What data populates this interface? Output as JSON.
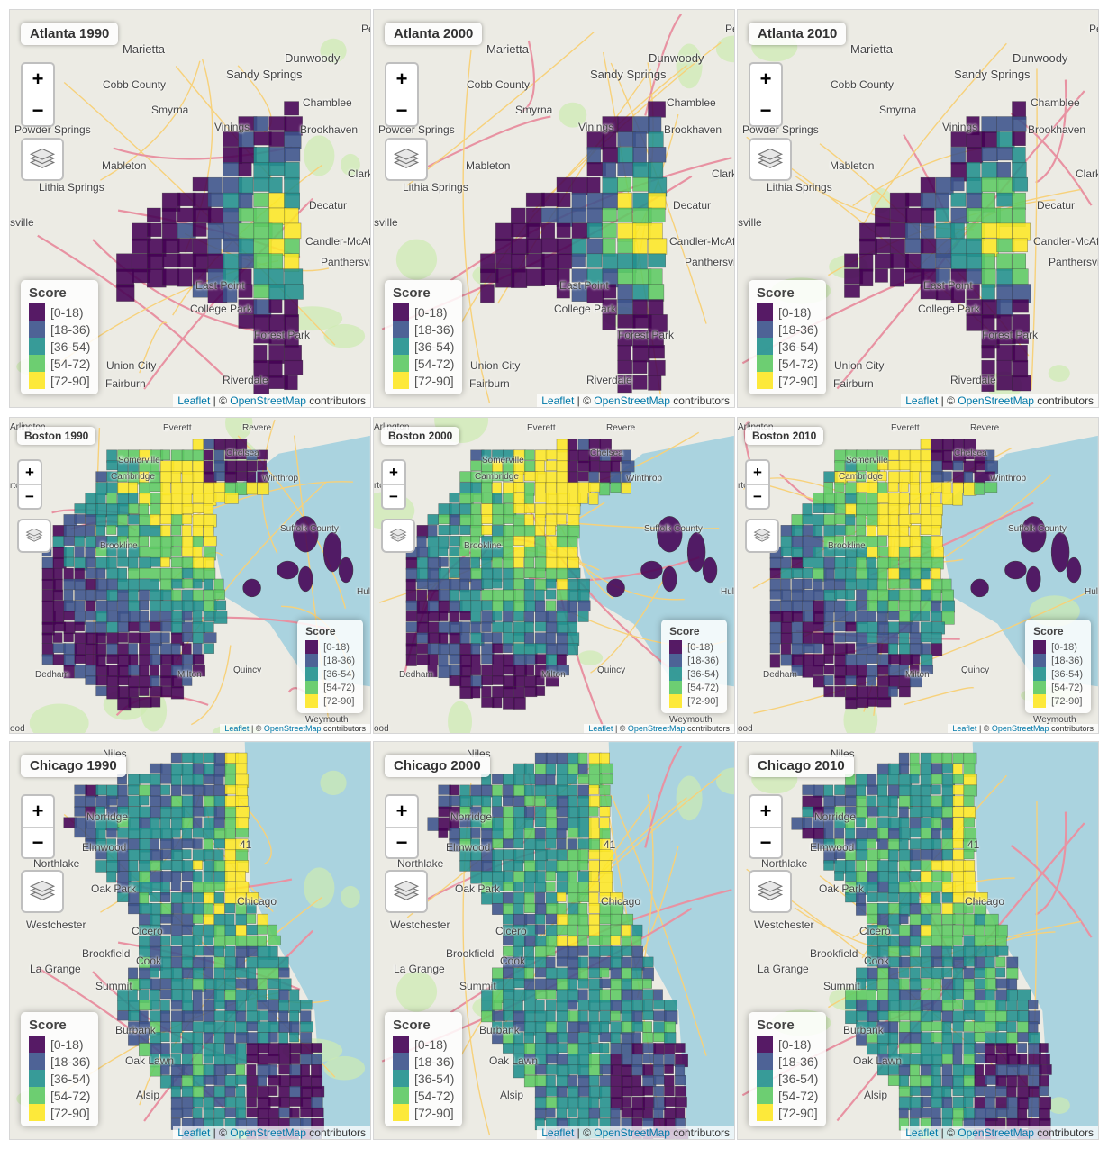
{
  "legend_title": "Score",
  "bins": [
    {
      "label": "[0-18)",
      "color": "#440154"
    },
    {
      "label": "[18-36)",
      "color": "#3b528b"
    },
    {
      "label": "[36-54)",
      "color": "#21908d"
    },
    {
      "label": "[54-72)",
      "color": "#5dc963"
    },
    {
      "label": "[72-90]",
      "color": "#fde725"
    }
  ],
  "attribution": {
    "leaflet": "Leaflet",
    "sep": " | © ",
    "osm": "OpenStreetMap",
    "tail": " contributors"
  },
  "cities": {
    "atlanta": {
      "places": [
        "Marietta",
        "Dunwoody",
        "Sandy Springs",
        "Cobb County",
        "Chamblee",
        "Smyrna",
        "Vinings",
        "Brookhaven",
        "Powder Springs",
        "Mableton",
        "Clark",
        "Lithia Springs",
        "Decatur",
        "Candler-McAfee",
        "Panthersville",
        "East Point",
        "College Park",
        "Forest Park",
        "Union City",
        "Riverdale",
        "Fairburn",
        "sville",
        "Pe"
      ],
      "panels": [
        {
          "title": "Atlanta 1990"
        },
        {
          "title": "Atlanta 2000"
        },
        {
          "title": "Atlanta 2010"
        }
      ]
    },
    "boston": {
      "places": [
        "Arlington",
        "Everett",
        "Revere",
        "Chelsea",
        "Somerville",
        "Winthrop",
        "Cambridge",
        "rtown",
        "Brookline",
        "Suffolk County",
        "Hull",
        "Dedham",
        "Milton",
        "Quincy",
        "Weymouth",
        "ood"
      ],
      "panels": [
        {
          "title": "Boston 1990"
        },
        {
          "title": "Boston 2000"
        },
        {
          "title": "Boston 2010"
        }
      ]
    },
    "chicago": {
      "places": [
        "Niles",
        "Norridge",
        "Elmwood",
        "Northlake",
        "Oak Park",
        "Chicago",
        "Westchester",
        "Cicero",
        "Brookfield",
        "La Grange",
        "Summit",
        "Cook",
        "Burbank",
        "Oak Lawn",
        "Alsip",
        "41"
      ],
      "panels": [
        {
          "title": "Chicago 1990"
        },
        {
          "title": "Chicago 2000"
        },
        {
          "title": "Chicago 2010"
        }
      ]
    }
  }
}
